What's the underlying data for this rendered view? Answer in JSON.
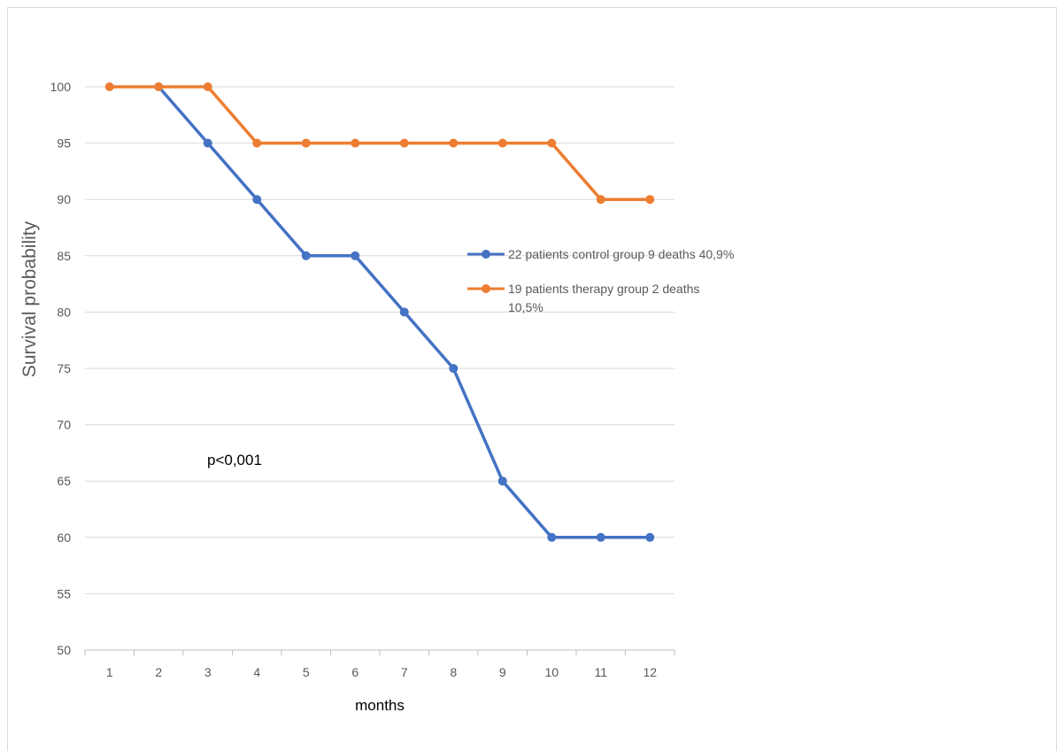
{
  "chart_data": {
    "type": "line",
    "title": "",
    "xlabel": "months",
    "ylabel": "Survival probability",
    "categories": [
      "1",
      "2",
      "3",
      "4",
      "5",
      "6",
      "7",
      "8",
      "9",
      "10",
      "11",
      "12"
    ],
    "ylim": [
      50,
      100
    ],
    "yticks": [
      "50",
      "55",
      "60",
      "65",
      "70",
      "75",
      "80",
      "85",
      "90",
      "95",
      "100"
    ],
    "grid": true,
    "legend_position": "right",
    "annotation": "p<0,001",
    "series": [
      {
        "name": "22 patients control group 9 deaths 40,9%",
        "color": "#4472C4",
        "values": [
          null,
          100,
          95,
          90,
          85,
          85,
          80,
          75,
          65,
          60,
          60,
          60
        ]
      },
      {
        "name": "19 patients therapy group 2 deaths 10,5%",
        "name_lines": [
          "19 patients therapy group 2 deaths",
          "10,5%"
        ],
        "color": "#ED7D31",
        "values": [
          100,
          100,
          100,
          95,
          95,
          95,
          95,
          95,
          95,
          95,
          90,
          90
        ]
      }
    ]
  }
}
